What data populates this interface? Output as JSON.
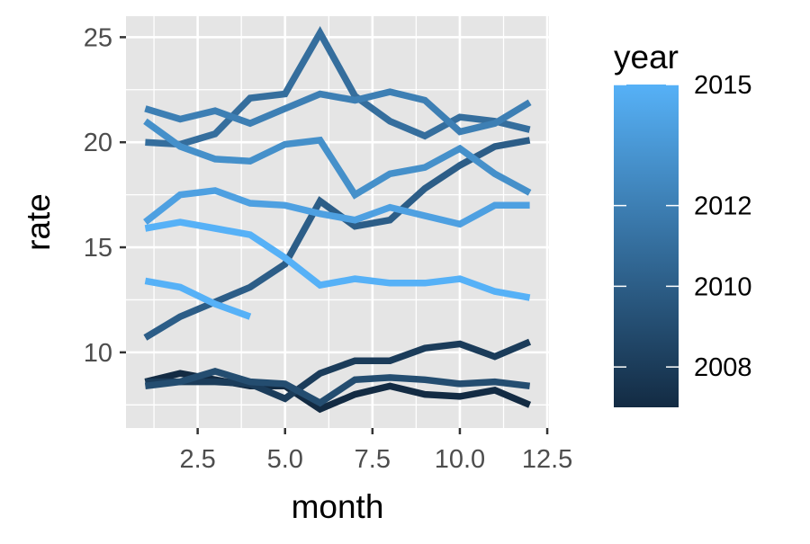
{
  "chart_data": {
    "type": "line",
    "xlabel": "month",
    "ylabel": "rate",
    "xlim": [
      0.45,
      12.55
    ],
    "ylim": [
      6.4,
      26.0
    ],
    "x_ticks": [
      2.5,
      5.0,
      7.5,
      10.0,
      12.5
    ],
    "x_tick_labels": [
      "2.5",
      "5.0",
      "7.5",
      "10.0",
      "12.5"
    ],
    "y_ticks": [
      10,
      15,
      20,
      25
    ],
    "y_tick_labels": [
      "10",
      "15",
      "20",
      "25"
    ],
    "grid": true,
    "legend": {
      "title": "year",
      "position": "right",
      "type": "colorbar",
      "range": [
        2007,
        2015
      ],
      "ticks": [
        2008,
        2010,
        2012,
        2015
      ],
      "tick_labels": [
        "2008",
        "2010",
        "2012",
        "2015"
      ],
      "color_low": "#132B43",
      "color_high": "#56B1F7"
    },
    "colors": {
      "panel_background": "#e5e5e5",
      "grid": "#ffffff",
      "tick_label": "#4d4d4d",
      "axis_title": "#000000"
    },
    "series": [
      {
        "year": 2007,
        "x": [
          1,
          2,
          3,
          4,
          5,
          6,
          7,
          8,
          9,
          10,
          11,
          12
        ],
        "y": [
          8.6,
          9.0,
          8.7,
          8.4,
          8.4,
          7.3,
          8.0,
          8.4,
          8.0,
          7.9,
          8.2,
          7.5
        ]
      },
      {
        "year": 2008,
        "x": [
          1,
          2,
          3,
          4,
          5,
          6,
          7,
          8,
          9,
          10,
          11,
          12
        ],
        "y": [
          8.6,
          8.6,
          8.6,
          8.5,
          7.8,
          9.0,
          9.6,
          9.6,
          10.2,
          10.4,
          9.8,
          10.5
        ]
      },
      {
        "year": 2009,
        "x": [
          1,
          2,
          3,
          4,
          5,
          6,
          7,
          8,
          9,
          10,
          11,
          12
        ],
        "y": [
          8.4,
          8.6,
          9.1,
          8.6,
          8.5,
          7.6,
          8.7,
          8.8,
          8.7,
          8.5,
          8.6,
          8.4
        ]
      },
      {
        "year": 2010,
        "x": [
          1,
          2,
          3,
          4,
          5,
          6,
          7,
          8,
          9,
          10,
          11,
          12
        ],
        "y": [
          10.7,
          11.7,
          12.4,
          13.1,
          14.2,
          17.2,
          16.0,
          16.3,
          17.8,
          18.9,
          19.8,
          20.1
        ]
      },
      {
        "year": 2011,
        "x": [
          1,
          2,
          3,
          4,
          5,
          6,
          7,
          8,
          9,
          10,
          11,
          12
        ],
        "y": [
          20.0,
          19.9,
          20.4,
          22.1,
          22.3,
          25.2,
          22.2,
          21.0,
          20.3,
          21.2,
          21.0,
          20.6
        ]
      },
      {
        "year": 2012,
        "x": [
          1,
          2,
          3,
          4,
          5,
          6,
          7,
          8,
          9,
          10,
          11,
          12
        ],
        "y": [
          21.6,
          21.1,
          21.5,
          20.9,
          21.6,
          22.3,
          22.0,
          22.4,
          22.0,
          20.5,
          20.9,
          21.9
        ]
      },
      {
        "year": 2013,
        "x": [
          1,
          2,
          3,
          4,
          5,
          6,
          7,
          8,
          9,
          10,
          11,
          12
        ],
        "y": [
          21.0,
          19.8,
          19.2,
          19.1,
          19.9,
          20.1,
          17.5,
          18.5,
          18.8,
          19.7,
          18.5,
          17.6
        ]
      },
      {
        "year": 2014,
        "x": [
          1,
          2,
          3,
          4,
          5,
          6,
          7,
          8,
          9,
          10,
          11,
          12
        ],
        "y": [
          16.2,
          17.5,
          17.7,
          17.1,
          17.0,
          16.6,
          16.3,
          16.9,
          16.5,
          16.1,
          17.0,
          17.0
        ]
      },
      {
        "year": 2015,
        "x": [
          1,
          2,
          3,
          4,
          5,
          6,
          7,
          8,
          9,
          10,
          11,
          12
        ],
        "y": [
          15.9,
          16.2,
          15.9,
          15.6,
          14.5,
          13.2,
          13.5,
          13.3,
          13.3,
          13.5,
          12.9,
          12.6
        ]
      },
      {
        "year": 2016,
        "x": [
          1,
          2,
          3,
          4
        ],
        "y": [
          13.4,
          13.1,
          12.3,
          11.7
        ]
      }
    ]
  }
}
